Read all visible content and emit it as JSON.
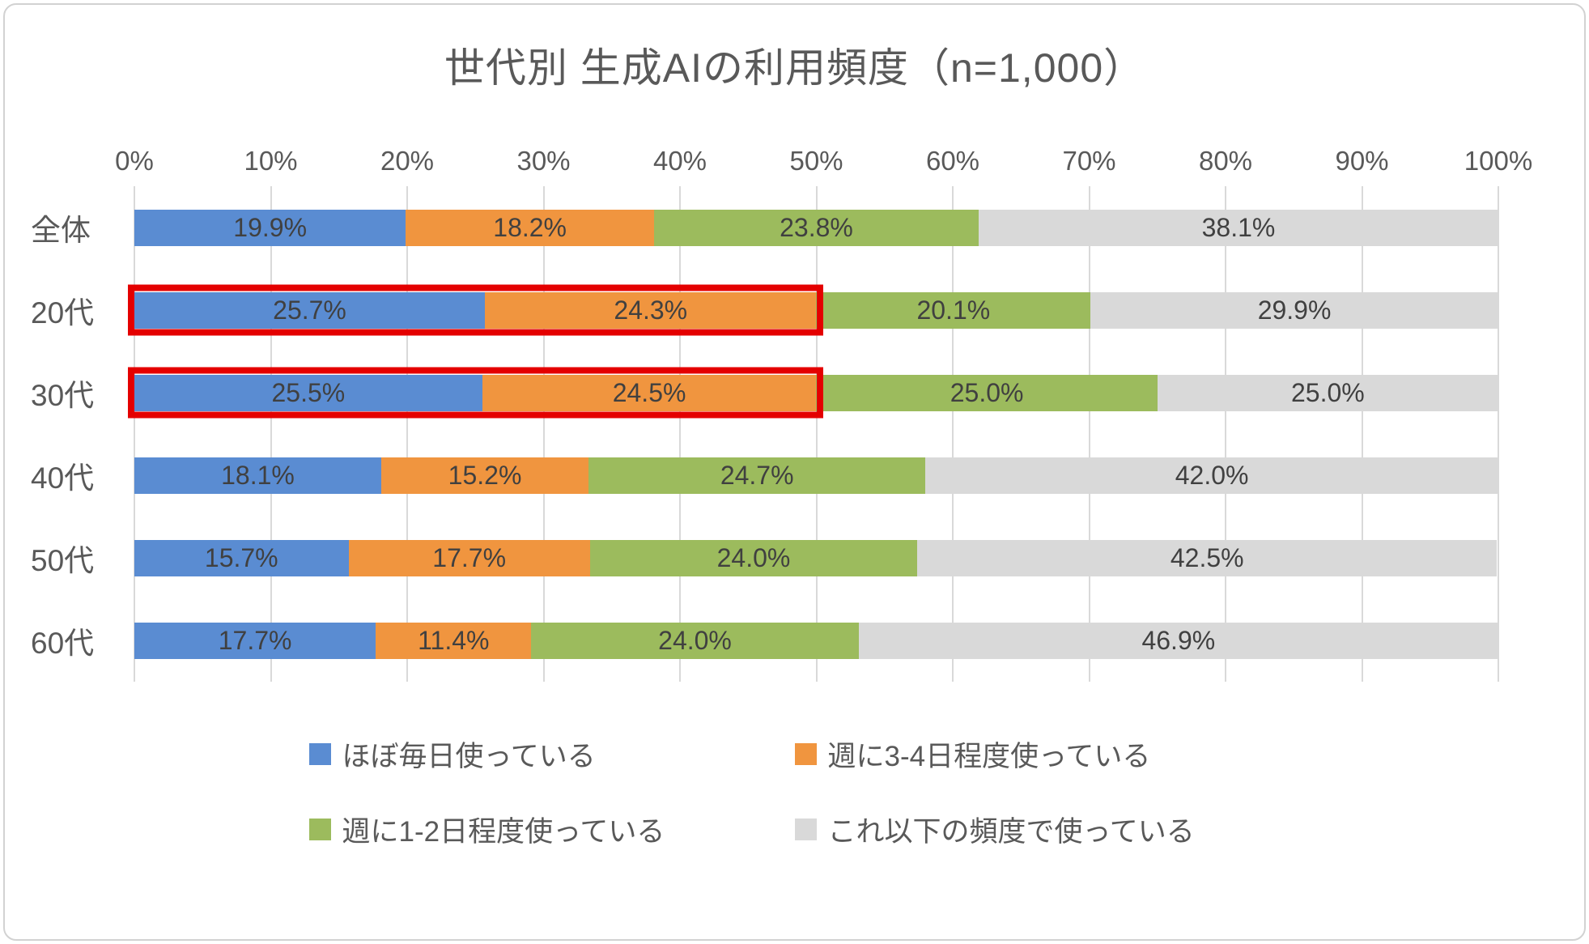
{
  "chart_data": {
    "type": "bar",
    "orientation": "horizontal-stacked",
    "title": "世代別 生成AIの利用頻度（n=1,000）",
    "categories": [
      "全体",
      "20代",
      "30代",
      "40代",
      "50代",
      "60代"
    ],
    "series": [
      {
        "name": "ほぼ毎日使っている",
        "color": "#5a8cd2",
        "values": [
          19.9,
          25.7,
          25.5,
          18.1,
          15.7,
          17.7
        ]
      },
      {
        "name": "週に3-4日程度使っている",
        "color": "#f0953f",
        "values": [
          18.2,
          24.3,
          24.5,
          15.2,
          17.7,
          11.4
        ]
      },
      {
        "name": "週に1-2日程度使っている",
        "color": "#9cbb5d",
        "values": [
          23.8,
          20.1,
          25.0,
          24.7,
          24.0,
          24.0
        ]
      },
      {
        "name": "これ以下の頻度で使っている",
        "color": "#d9d9d9",
        "values": [
          38.1,
          29.9,
          25.0,
          42.0,
          42.5,
          46.9
        ]
      }
    ],
    "x_ticks": [
      "0%",
      "10%",
      "20%",
      "30%",
      "40%",
      "50%",
      "60%",
      "70%",
      "80%",
      "90%",
      "100%"
    ],
    "xlim": [
      0,
      100
    ],
    "grid": "vertical",
    "legend_position": "bottom",
    "value_label_suffix": "%",
    "highlight_color": "#e40000",
    "highlights": [
      {
        "row": 1,
        "segments": [
          0,
          1
        ]
      },
      {
        "row": 2,
        "segments": [
          0,
          1
        ]
      }
    ]
  }
}
